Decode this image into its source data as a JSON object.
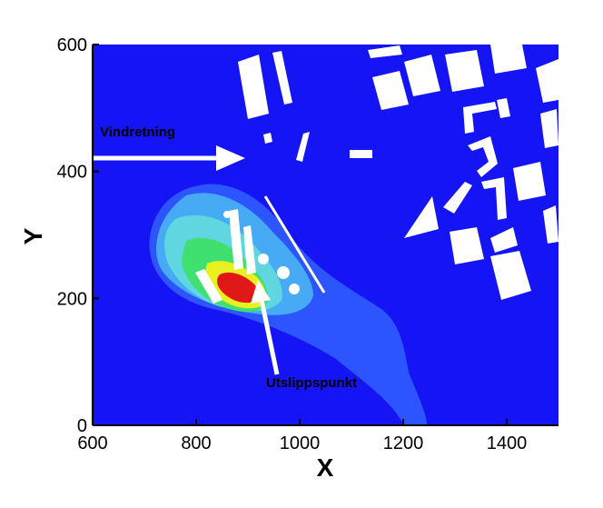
{
  "chart_data": {
    "type": "contour",
    "xlabel": "X",
    "ylabel": "Y",
    "xlim": [
      600,
      1500
    ],
    "ylim": [
      0,
      600
    ],
    "xticks": [
      600,
      800,
      1000,
      1200,
      1400
    ],
    "yticks": [
      0,
      200,
      400,
      600
    ],
    "annotations": [
      "Vindretning",
      "Utslippspunkt"
    ]
  }
}
